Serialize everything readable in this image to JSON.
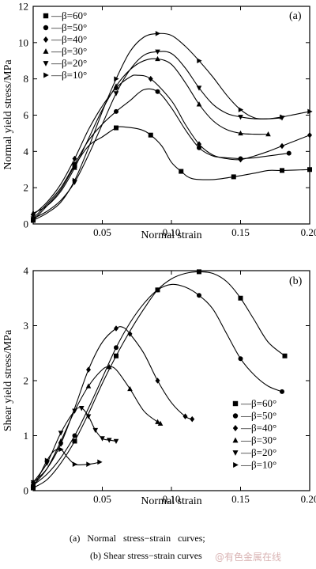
{
  "chart_data": [
    {
      "type": "line",
      "panel_label": "(a)",
      "xlabel": "Normal strain",
      "ylabel": "Normal yield stress/MPa",
      "xlim": [
        0,
        0.2
      ],
      "ylim": [
        0,
        12
      ],
      "xticks": [
        "0.05",
        "0.10",
        "0.15",
        "0.20"
      ],
      "yticks": [
        "0",
        "2",
        "4",
        "6",
        "8",
        "10",
        "12"
      ],
      "legend_position": "top-left",
      "legend_prefix": "—",
      "series": [
        {
          "name": "β=60°",
          "marker": "square",
          "points": [
            [
              0.0,
              0.2
            ],
            [
              0.01,
              1.0
            ],
            [
              0.02,
              1.9
            ],
            [
              0.03,
              3.2
            ],
            [
              0.04,
              4.3
            ],
            [
              0.05,
              4.8
            ],
            [
              0.06,
              5.3
            ],
            [
              0.066,
              5.35
            ],
            [
              0.078,
              5.2
            ],
            [
              0.085,
              4.9
            ],
            [
              0.093,
              4.3
            ],
            [
              0.1,
              3.4
            ],
            [
              0.107,
              2.9
            ],
            [
              0.115,
              2.5
            ],
            [
              0.13,
              2.45
            ],
            [
              0.145,
              2.6
            ],
            [
              0.16,
              2.8
            ],
            [
              0.17,
              2.95
            ],
            [
              0.18,
              2.95
            ],
            [
              0.2,
              3.0
            ]
          ]
        },
        {
          "name": "β=50°",
          "marker": "circle",
          "points": [
            [
              0.0,
              0.3
            ],
            [
              0.01,
              1.1
            ],
            [
              0.02,
              2.0
            ],
            [
              0.03,
              3.3
            ],
            [
              0.04,
              4.6
            ],
            [
              0.05,
              5.5
            ],
            [
              0.06,
              6.2
            ],
            [
              0.07,
              6.8
            ],
            [
              0.08,
              7.4
            ],
            [
              0.09,
              7.3
            ],
            [
              0.1,
              6.4
            ],
            [
              0.11,
              5.2
            ],
            [
              0.12,
              4.2
            ],
            [
              0.13,
              3.75
            ],
            [
              0.14,
              3.65
            ],
            [
              0.15,
              3.6
            ],
            [
              0.16,
              3.65
            ],
            [
              0.17,
              3.75
            ],
            [
              0.185,
              3.9
            ]
          ]
        },
        {
          "name": "β=40°",
          "marker": "diamond",
          "points": [
            [
              0.0,
              0.5
            ],
            [
              0.01,
              1.2
            ],
            [
              0.02,
              2.2
            ],
            [
              0.03,
              3.6
            ],
            [
              0.04,
              5.2
            ],
            [
              0.05,
              6.5
            ],
            [
              0.06,
              7.5
            ],
            [
              0.07,
              8.1
            ],
            [
              0.075,
              8.2
            ],
            [
              0.085,
              8.0
            ],
            [
              0.1,
              6.8
            ],
            [
              0.11,
              5.5
            ],
            [
              0.12,
              4.4
            ],
            [
              0.13,
              3.8
            ],
            [
              0.14,
              3.6
            ],
            [
              0.15,
              3.55
            ],
            [
              0.16,
              3.75
            ],
            [
              0.17,
              4.0
            ],
            [
              0.18,
              4.3
            ],
            [
              0.19,
              4.6
            ],
            [
              0.2,
              4.9
            ]
          ]
        },
        {
          "name": "β=30°",
          "marker": "triangle-up",
          "points": [
            [
              0.0,
              0.6
            ],
            [
              0.01,
              1.0
            ],
            [
              0.02,
              1.8
            ],
            [
              0.03,
              3.1
            ],
            [
              0.04,
              4.7
            ],
            [
              0.05,
              6.3
            ],
            [
              0.06,
              7.6
            ],
            [
              0.07,
              8.5
            ],
            [
              0.08,
              9.0
            ],
            [
              0.09,
              9.1
            ],
            [
              0.1,
              8.8
            ],
            [
              0.11,
              7.8
            ],
            [
              0.12,
              6.6
            ],
            [
              0.13,
              5.7
            ],
            [
              0.14,
              5.2
            ],
            [
              0.15,
              5.0
            ],
            [
              0.16,
              4.95
            ],
            [
              0.17,
              4.95
            ]
          ]
        },
        {
          "name": "β=20°",
          "marker": "triangle-down",
          "points": [
            [
              0.0,
              0.3
            ],
            [
              0.01,
              0.7
            ],
            [
              0.02,
              1.3
            ],
            [
              0.03,
              2.3
            ],
            [
              0.04,
              3.8
            ],
            [
              0.05,
              5.5
            ],
            [
              0.06,
              7.2
            ],
            [
              0.07,
              8.5
            ],
            [
              0.08,
              9.3
            ],
            [
              0.09,
              9.5
            ],
            [
              0.1,
              9.4
            ],
            [
              0.11,
              8.6
            ],
            [
              0.12,
              7.5
            ],
            [
              0.13,
              6.6
            ],
            [
              0.14,
              6.1
            ],
            [
              0.15,
              5.9
            ],
            [
              0.16,
              5.8
            ],
            [
              0.17,
              5.8
            ],
            [
              0.18,
              5.85
            ]
          ]
        },
        {
          "name": "β=10°",
          "marker": "triangle-right",
          "points": [
            [
              0.0,
              0.2
            ],
            [
              0.01,
              0.6
            ],
            [
              0.02,
              1.2
            ],
            [
              0.03,
              2.4
            ],
            [
              0.04,
              4.2
            ],
            [
              0.05,
              6.2
            ],
            [
              0.06,
              8.0
            ],
            [
              0.07,
              9.5
            ],
            [
              0.08,
              10.3
            ],
            [
              0.09,
              10.5
            ],
            [
              0.1,
              10.4
            ],
            [
              0.11,
              9.8
            ],
            [
              0.12,
              9.0
            ],
            [
              0.13,
              8.1
            ],
            [
              0.14,
              7.1
            ],
            [
              0.15,
              6.3
            ],
            [
              0.16,
              5.85
            ],
            [
              0.17,
              5.8
            ],
            [
              0.18,
              5.9
            ],
            [
              0.19,
              6.05
            ],
            [
              0.2,
              6.2
            ]
          ]
        }
      ]
    },
    {
      "type": "line",
      "panel_label": "(b)",
      "xlabel": "Normal strain",
      "ylabel": "Shear yield stress/MPa",
      "xlim": [
        0,
        0.2
      ],
      "ylim": [
        0,
        4
      ],
      "xticks": [
        "0.05",
        "0.10",
        "0.15",
        "0.20"
      ],
      "yticks": [
        "0",
        "1",
        "2",
        "3",
        "4"
      ],
      "legend_position": "bottom-right",
      "legend_prefix": "—",
      "series": [
        {
          "name": "β=60°",
          "marker": "square",
          "points": [
            [
              0.0,
              0.05
            ],
            [
              0.01,
              0.2
            ],
            [
              0.02,
              0.5
            ],
            [
              0.03,
              0.9
            ],
            [
              0.04,
              1.4
            ],
            [
              0.05,
              1.95
            ],
            [
              0.06,
              2.45
            ],
            [
              0.07,
              2.9
            ],
            [
              0.08,
              3.3
            ],
            [
              0.09,
              3.65
            ],
            [
              0.1,
              3.85
            ],
            [
              0.11,
              3.95
            ],
            [
              0.12,
              3.98
            ],
            [
              0.13,
              3.95
            ],
            [
              0.14,
              3.8
            ],
            [
              0.15,
              3.5
            ],
            [
              0.16,
              3.1
            ],
            [
              0.17,
              2.7
            ],
            [
              0.182,
              2.45
            ]
          ]
        },
        {
          "name": "β=50°",
          "marker": "circle",
          "points": [
            [
              0.0,
              0.1
            ],
            [
              0.01,
              0.3
            ],
            [
              0.02,
              0.6
            ],
            [
              0.03,
              1.0
            ],
            [
              0.04,
              1.5
            ],
            [
              0.05,
              2.05
            ],
            [
              0.06,
              2.6
            ],
            [
              0.07,
              3.05
            ],
            [
              0.08,
              3.4
            ],
            [
              0.09,
              3.65
            ],
            [
              0.1,
              3.75
            ],
            [
              0.11,
              3.7
            ],
            [
              0.12,
              3.55
            ],
            [
              0.13,
              3.3
            ],
            [
              0.14,
              2.85
            ],
            [
              0.15,
              2.4
            ],
            [
              0.16,
              2.1
            ],
            [
              0.17,
              1.9
            ],
            [
              0.18,
              1.8
            ]
          ]
        },
        {
          "name": "β=40°",
          "marker": "diamond",
          "points": [
            [
              0.0,
              0.15
            ],
            [
              0.01,
              0.4
            ],
            [
              0.02,
              0.85
            ],
            [
              0.03,
              1.5
            ],
            [
              0.04,
              2.2
            ],
            [
              0.05,
              2.7
            ],
            [
              0.06,
              2.95
            ],
            [
              0.065,
              2.97
            ],
            [
              0.07,
              2.85
            ],
            [
              0.08,
              2.5
            ],
            [
              0.09,
              2.0
            ],
            [
              0.1,
              1.6
            ],
            [
              0.11,
              1.35
            ],
            [
              0.115,
              1.3
            ]
          ]
        },
        {
          "name": "β=30°",
          "marker": "triangle-up",
          "points": [
            [
              0.0,
              0.1
            ],
            [
              0.01,
              0.4
            ],
            [
              0.02,
              0.9
            ],
            [
              0.03,
              1.45
            ],
            [
              0.04,
              1.9
            ],
            [
              0.05,
              2.2
            ],
            [
              0.055,
              2.25
            ],
            [
              0.06,
              2.2
            ],
            [
              0.07,
              1.85
            ],
            [
              0.08,
              1.45
            ],
            [
              0.09,
              1.25
            ],
            [
              0.092,
              1.22
            ]
          ]
        },
        {
          "name": "β=20°",
          "marker": "triangle-down",
          "points": [
            [
              0.0,
              0.15
            ],
            [
              0.01,
              0.5
            ],
            [
              0.02,
              1.05
            ],
            [
              0.03,
              1.45
            ],
            [
              0.035,
              1.5
            ],
            [
              0.04,
              1.35
            ],
            [
              0.045,
              1.1
            ],
            [
              0.05,
              0.95
            ],
            [
              0.055,
              0.92
            ],
            [
              0.06,
              0.9
            ]
          ]
        },
        {
          "name": "β=10°",
          "marker": "triangle-right",
          "points": [
            [
              0.0,
              0.05
            ],
            [
              0.005,
              0.3
            ],
            [
              0.01,
              0.55
            ],
            [
              0.015,
              0.72
            ],
            [
              0.02,
              0.75
            ],
            [
              0.025,
              0.6
            ],
            [
              0.03,
              0.48
            ],
            [
              0.035,
              0.47
            ],
            [
              0.04,
              0.48
            ],
            [
              0.045,
              0.5
            ],
            [
              0.048,
              0.52
            ]
          ]
        }
      ]
    }
  ],
  "caption": {
    "line1": "(a)   Normal   stress−strain   curves;",
    "line2": "(b) Shear stress−strain curves"
  },
  "watermark": "@有色金属在线"
}
